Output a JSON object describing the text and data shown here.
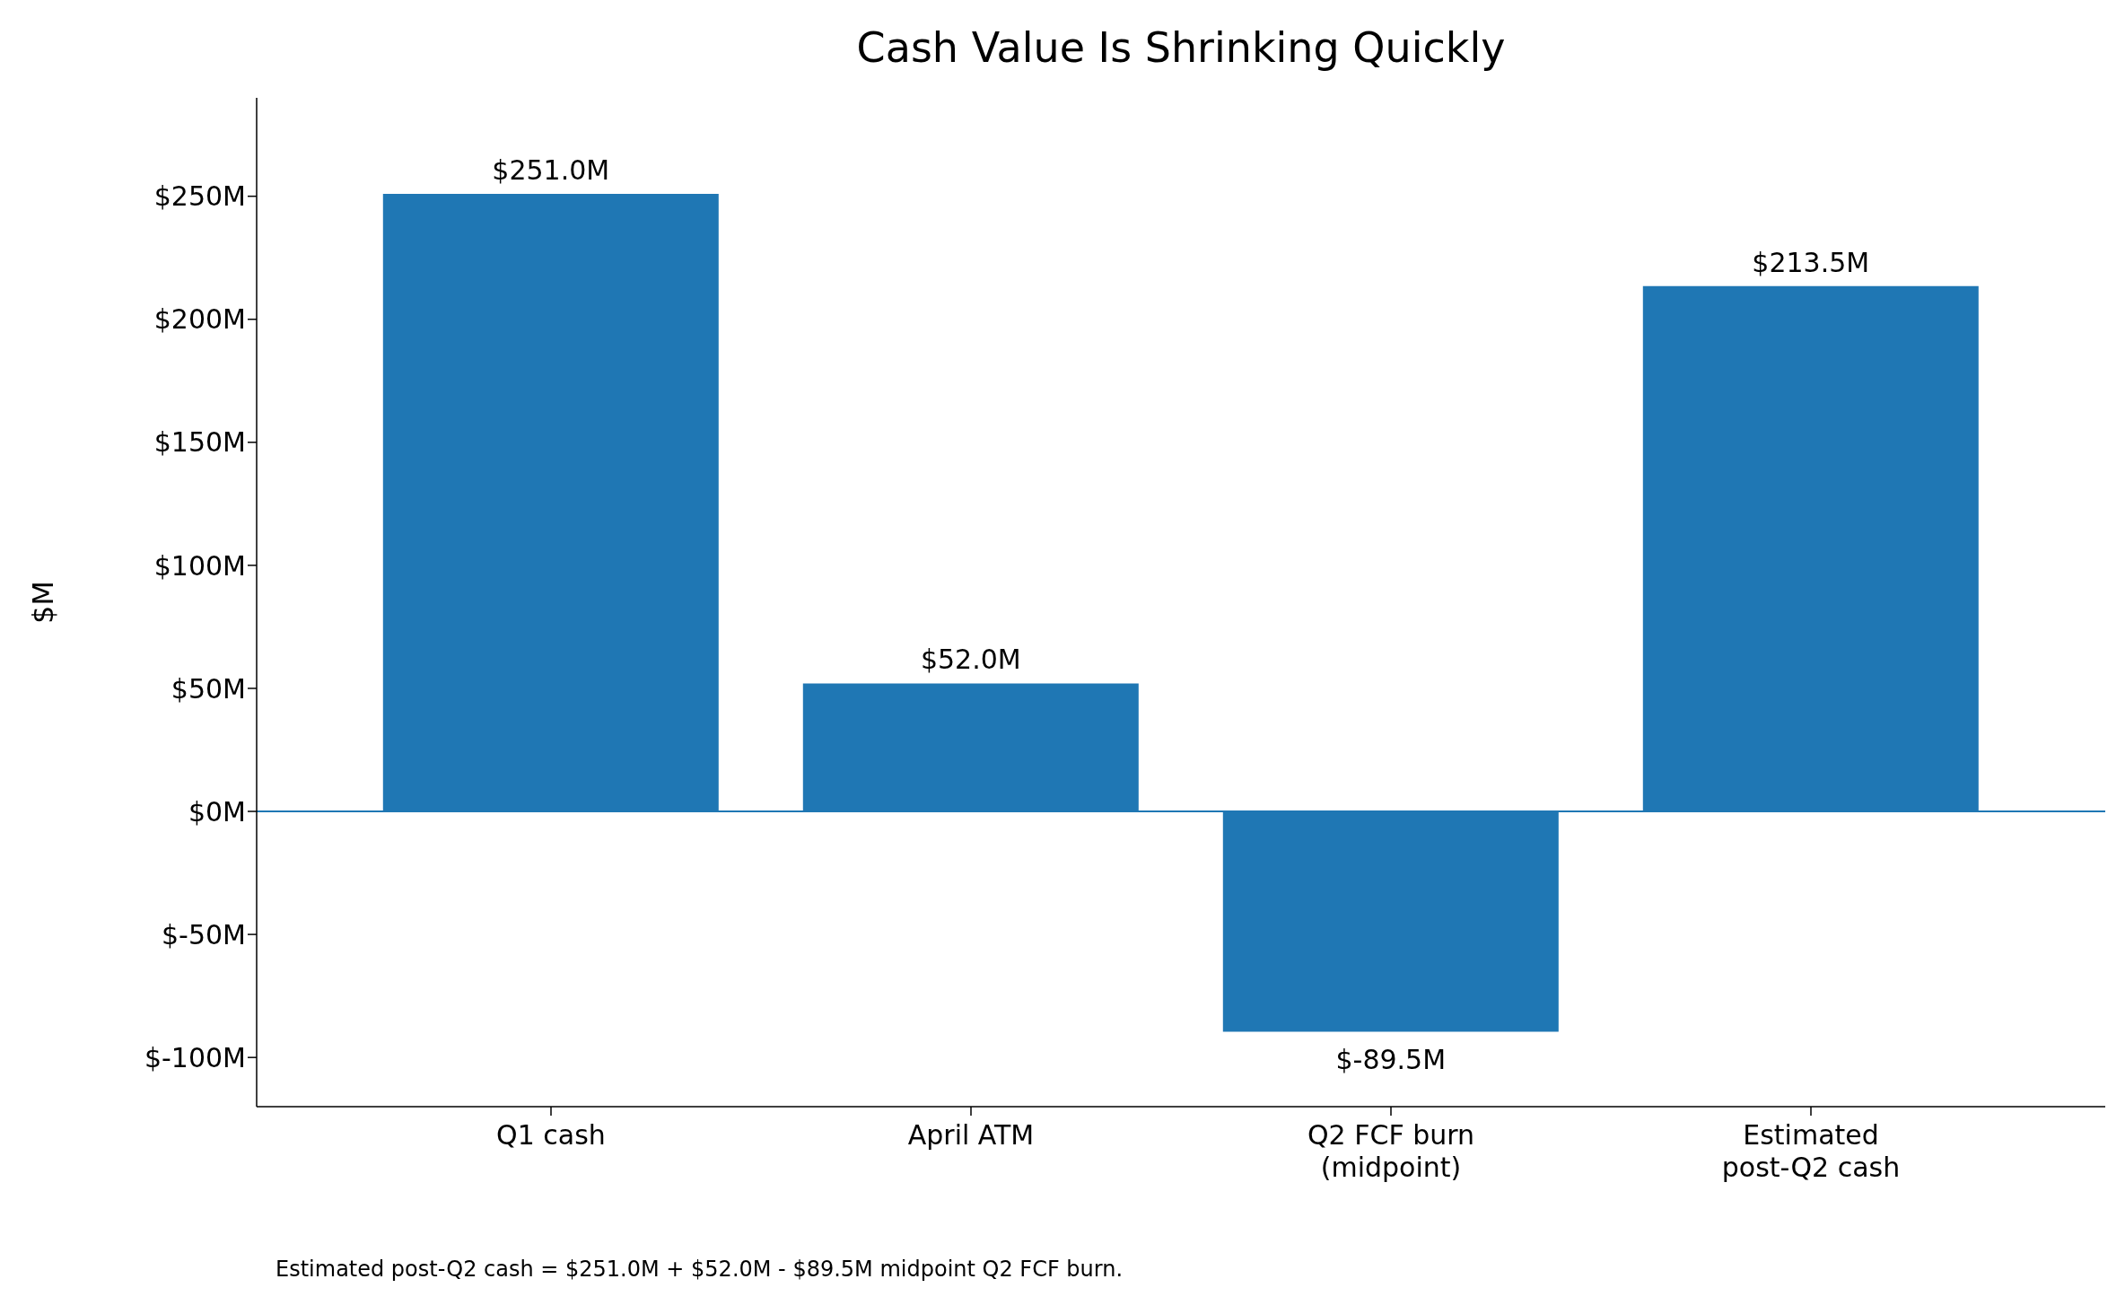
{
  "chart_data": {
    "type": "bar",
    "title": "Cash Value Is Shrinking Quickly",
    "ylabel": "$M",
    "categories": [
      "Q1 cash",
      "April ATM",
      "Q2 FCF burn\n(midpoint)",
      "Estimated\npost-Q2 cash"
    ],
    "values": [
      251.0,
      52.0,
      -89.5,
      213.5
    ],
    "value_labels": [
      "$251.0M",
      "$52.0M",
      "$-89.5M",
      "$213.5M"
    ],
    "color": "#1f77b4",
    "ylim": [
      -120,
      290
    ],
    "yticks": [
      {
        "value": -100,
        "label": "$-100M"
      },
      {
        "value": -50,
        "label": "$-50M"
      },
      {
        "value": 0,
        "label": "$0M"
      },
      {
        "value": 50,
        "label": "$50M"
      },
      {
        "value": 100,
        "label": "$100M"
      },
      {
        "value": 150,
        "label": "$150M"
      },
      {
        "value": 200,
        "label": "$200M"
      },
      {
        "value": 250,
        "label": "$250M"
      }
    ],
    "ref_lines": [
      {
        "axis": "y",
        "value": 0,
        "color": "#1f77b4"
      }
    ],
    "annotations": [
      "Estimated post-Q2 cash = $251.0M + $52.0M - $89.5M midpoint Q2 FCF burn."
    ],
    "grid": false,
    "legend": false
  }
}
